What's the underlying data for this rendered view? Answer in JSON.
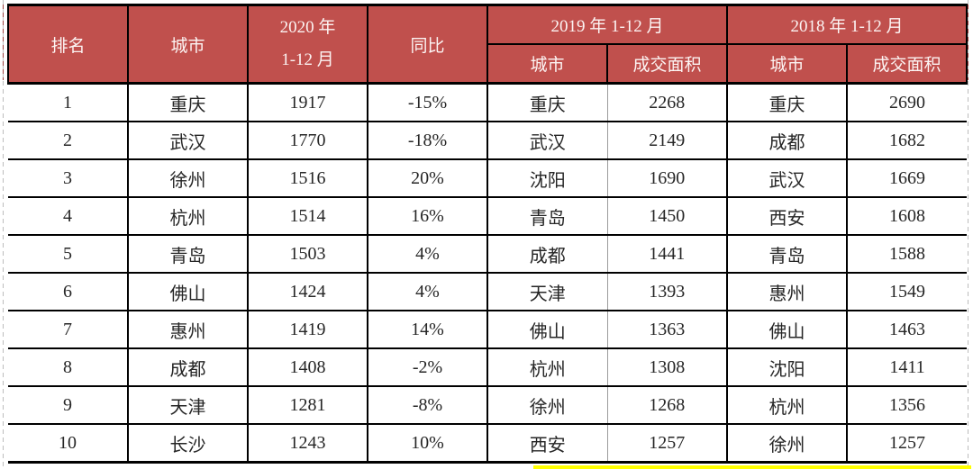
{
  "table": {
    "header": {
      "rank": "排名",
      "city": "城市",
      "y2020_line1": "2020 年",
      "y2020_line2": "1-12 月",
      "yoy": "同比",
      "group_2019": "2019 年 1-12 月",
      "group_2018": "2018 年 1-12 月",
      "sub_city_2019": "城市",
      "sub_area_2019": "成交面积",
      "sub_city_2018": "城市",
      "sub_area_2018": "成交面积"
    },
    "rows": [
      {
        "rank": "1",
        "city_2020": "重庆",
        "area_2020": "1917",
        "yoy": "-15%",
        "city_2019": "重庆",
        "area_2019": "2268",
        "city_2018": "重庆",
        "area_2018": "2690"
      },
      {
        "rank": "2",
        "city_2020": "武汉",
        "area_2020": "1770",
        "yoy": "-18%",
        "city_2019": "武汉",
        "area_2019": "2149",
        "city_2018": "成都",
        "area_2018": "1682"
      },
      {
        "rank": "3",
        "city_2020": "徐州",
        "area_2020": "1516",
        "yoy": "20%",
        "city_2019": "沈阳",
        "area_2019": "1690",
        "city_2018": "武汉",
        "area_2018": "1669"
      },
      {
        "rank": "4",
        "city_2020": "杭州",
        "area_2020": "1514",
        "yoy": "16%",
        "city_2019": "青岛",
        "area_2019": "1450",
        "city_2018": "西安",
        "area_2018": "1608"
      },
      {
        "rank": "5",
        "city_2020": "青岛",
        "area_2020": "1503",
        "yoy": "4%",
        "city_2019": "成都",
        "area_2019": "1441",
        "city_2018": "青岛",
        "area_2018": "1588"
      },
      {
        "rank": "6",
        "city_2020": "佛山",
        "area_2020": "1424",
        "yoy": "4%",
        "city_2019": "天津",
        "area_2019": "1393",
        "city_2018": "惠州",
        "area_2018": "1549"
      },
      {
        "rank": "7",
        "city_2020": "惠州",
        "area_2020": "1419",
        "yoy": "14%",
        "city_2019": "佛山",
        "area_2019": "1363",
        "city_2018": "佛山",
        "area_2018": "1463"
      },
      {
        "rank": "8",
        "city_2020": "成都",
        "area_2020": "1408",
        "yoy": "-2%",
        "city_2019": "杭州",
        "area_2019": "1308",
        "city_2018": "沈阳",
        "area_2018": "1411"
      },
      {
        "rank": "9",
        "city_2020": "天津",
        "area_2020": "1281",
        "yoy": "-8%",
        "city_2019": "徐州",
        "area_2019": "1268",
        "city_2018": "杭州",
        "area_2018": "1356"
      },
      {
        "rank": "10",
        "city_2020": "长沙",
        "area_2020": "1243",
        "yoy": "10%",
        "city_2019": "西安",
        "area_2019": "1257",
        "city_2018": "徐州",
        "area_2018": "1257"
      }
    ]
  },
  "colors": {
    "header_bg": "#c0504d",
    "header_text": "#fcf4f3",
    "body_text": "#262626",
    "border_black": "#000000",
    "border_gray": "#9c9c9c",
    "dash_gray": "#bcbcbc",
    "dash_red": "#9e403d",
    "highlight_yellow": "#ffff00"
  }
}
